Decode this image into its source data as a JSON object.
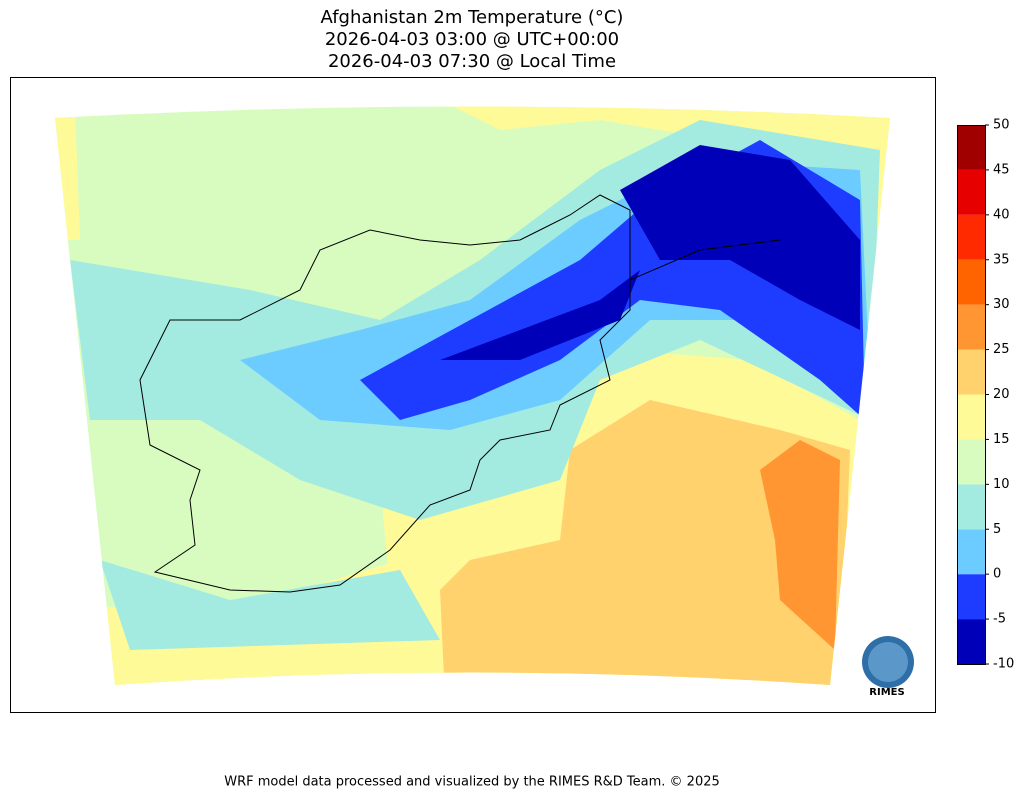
{
  "header": {
    "title_lines": [
      "Afghanistan 2m Temperature (°C)",
      "2026-04-03 03:00 @ UTC+00:00",
      "2026-04-03 07:30 @ Local Time"
    ]
  },
  "colorbar": {
    "ticks": [
      -10,
      -5,
      0,
      5,
      10,
      15,
      20,
      25,
      30,
      35,
      40,
      45,
      50
    ],
    "colors": [
      "#0000b9",
      "#1e3cff",
      "#6ccbff",
      "#a3ebe0",
      "#d8fcc0",
      "#fffa98",
      "#ffd26e",
      "#ff9632",
      "#ff6400",
      "#ff2a00",
      "#e60000",
      "#a00000"
    ]
  },
  "logo": {
    "text": "RIMES"
  },
  "footer": {
    "text": "WRF model data processed and visualized by the RIMES R&D Team. © 2025"
  }
}
